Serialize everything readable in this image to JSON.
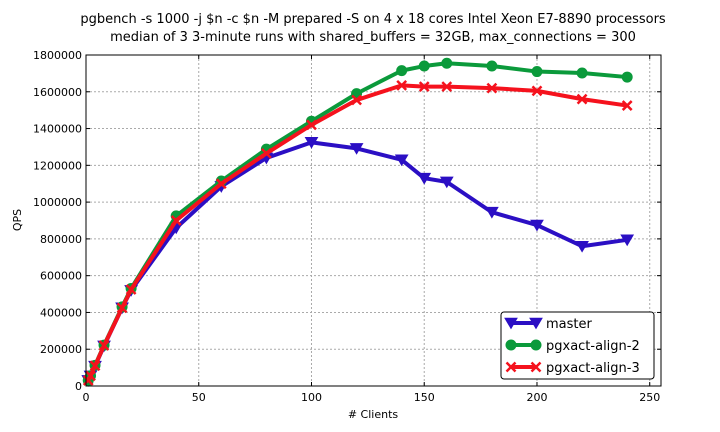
{
  "chart_data": {
    "type": "line",
    "title": "pgbench -s 1000 -j $n -c $n -M prepared -S on 4 x 18 cores Intel Xeon E7-8890 processors",
    "subtitle": "median of 3 3-minute runs with shared_buffers = 32GB, max_connections = 300",
    "xlabel": "# Clients",
    "ylabel": "QPS",
    "xlim": [
      0,
      255
    ],
    "ylim": [
      0,
      1800000
    ],
    "xticks": [
      0,
      50,
      100,
      150,
      200,
      250
    ],
    "xtick_labels": [
      "0",
      "50",
      "100",
      "150",
      "200",
      "250"
    ],
    "yticks": [
      0,
      200000,
      400000,
      600000,
      800000,
      1000000,
      1200000,
      1400000,
      1600000,
      1800000
    ],
    "ytick_labels": [
      "0",
      "200000",
      "400000",
      "600000",
      "800000",
      "1000000",
      "1200000",
      "1400000",
      "1600000",
      "1800000"
    ],
    "grid": true,
    "legend_position": "bottom-right",
    "x": [
      1,
      2,
      4,
      8,
      16,
      20,
      40,
      60,
      80,
      100,
      120,
      140,
      150,
      160,
      180,
      200,
      220,
      240
    ],
    "series": [
      {
        "name": "master",
        "color": "#2b0fc4",
        "marker": "triangle-down",
        "values": [
          30000,
          55000,
          108000,
          218000,
          425000,
          520000,
          860000,
          1085000,
          1240000,
          1325000,
          1292000,
          1230000,
          1130000,
          1110000,
          945000,
          875000,
          760000,
          795000
        ]
      },
      {
        "name": "pgxact-align-2",
        "color": "#0b9a3b",
        "marker": "circle",
        "values": [
          30000,
          56000,
          112000,
          222000,
          430000,
          530000,
          925000,
          1115000,
          1288000,
          1440000,
          1590000,
          1715000,
          1740000,
          1755000,
          1740000,
          1710000,
          1702000,
          1680000
        ]
      },
      {
        "name": "pgxact-align-3",
        "color": "#f5121d",
        "marker": "x",
        "values": [
          30000,
          55000,
          110000,
          220000,
          425000,
          525000,
          900000,
          1100000,
          1265000,
          1420000,
          1555000,
          1635000,
          1628000,
          1628000,
          1620000,
          1605000,
          1560000,
          1525000
        ]
      }
    ]
  }
}
